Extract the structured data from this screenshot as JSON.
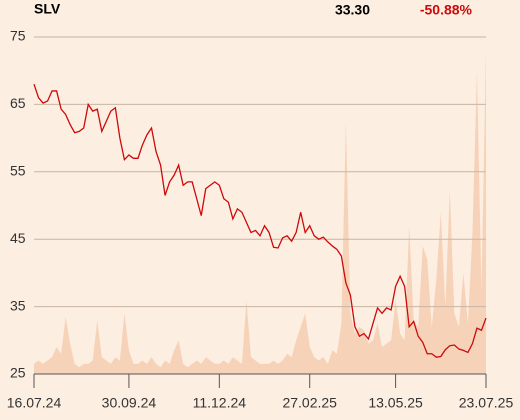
{
  "chart_data": {
    "type": "line",
    "title": "SLV",
    "last_price": "33.30",
    "change": "-50.88%",
    "color": "#cc0a0a",
    "volume_color": "#f6d3b8",
    "change_color": "#cc0a0a",
    "grid": true,
    "ylim": [
      25,
      75
    ],
    "yticks": [
      25,
      35,
      45,
      55,
      65,
      75
    ],
    "categories": [
      "16.07.24",
      null,
      null,
      null,
      null,
      null,
      null,
      null,
      null,
      null,
      null,
      null,
      null,
      null,
      null,
      null,
      null,
      null,
      null,
      null,
      null,
      "30.09.24",
      null,
      null,
      null,
      null,
      null,
      null,
      null,
      null,
      null,
      null,
      null,
      null,
      null,
      null,
      null,
      null,
      null,
      null,
      null,
      "11.12.24",
      null,
      null,
      null,
      null,
      null,
      null,
      null,
      null,
      null,
      null,
      null,
      null,
      null,
      null,
      null,
      null,
      null,
      null,
      null,
      "27.02.25",
      null,
      null,
      null,
      null,
      null,
      null,
      null,
      null,
      null,
      null,
      null,
      null,
      null,
      null,
      null,
      null,
      null,
      null,
      "13.05.25",
      null,
      null,
      null,
      null,
      null,
      null,
      null,
      null,
      null,
      null,
      null,
      null,
      null,
      null,
      null,
      null,
      null,
      null,
      null,
      "23.07.25"
    ],
    "values": [
      68,
      66,
      65.2,
      65.5,
      67,
      67,
      64.3,
      63.5,
      62,
      60.8,
      61,
      61.5,
      65,
      64,
      64.3,
      61,
      62.5,
      64,
      64.5,
      60,
      56.8,
      57.5,
      57,
      57,
      59,
      60.5,
      61.5,
      58,
      56,
      51.5,
      53.5,
      54.5,
      56,
      53,
      53.5,
      53.5,
      51,
      48.5,
      52.5,
      53,
      53.5,
      53,
      51,
      50.5,
      48,
      49.5,
      49,
      47.5,
      46,
      46.3,
      45.5,
      47,
      46,
      43.8,
      43.7,
      45.2,
      45.5,
      44.7,
      46,
      49,
      46,
      47,
      45.5,
      45,
      45.3,
      44.6,
      44,
      43.5,
      42.5,
      38.5,
      36.7,
      32,
      30.6,
      31,
      30.2,
      32.5,
      34.8,
      34,
      34.8,
      34.5,
      38,
      39.5,
      38,
      32,
      32.8,
      30.6,
      29.7,
      28,
      28,
      27.5,
      27.6,
      28.6,
      29.2,
      29.3,
      28.7,
      28.5,
      28.2,
      29.5,
      31.8,
      31.5,
      33.3
    ],
    "volume": [
      3,
      4,
      3,
      4,
      5,
      8,
      6,
      17,
      9,
      3,
      2,
      3,
      3,
      4,
      16,
      5,
      4,
      3,
      5,
      4,
      18,
      7,
      3,
      3,
      4,
      3,
      5,
      3,
      2,
      4,
      3,
      7,
      10,
      3,
      2,
      3,
      4,
      3,
      5,
      4,
      3,
      3,
      4,
      3,
      5,
      4,
      3,
      22,
      5,
      4,
      3,
      3,
      3,
      4,
      3,
      4,
      6,
      5,
      10,
      14,
      18,
      8,
      5,
      4,
      5,
      3,
      7,
      6,
      15,
      75,
      18,
      12,
      14,
      13,
      9,
      10,
      15,
      8,
      9,
      10,
      22,
      12,
      10,
      44,
      16,
      14,
      38,
      34,
      14,
      28,
      48,
      20,
      55,
      18,
      14,
      30,
      15,
      42,
      90,
      25,
      97
    ]
  }
}
